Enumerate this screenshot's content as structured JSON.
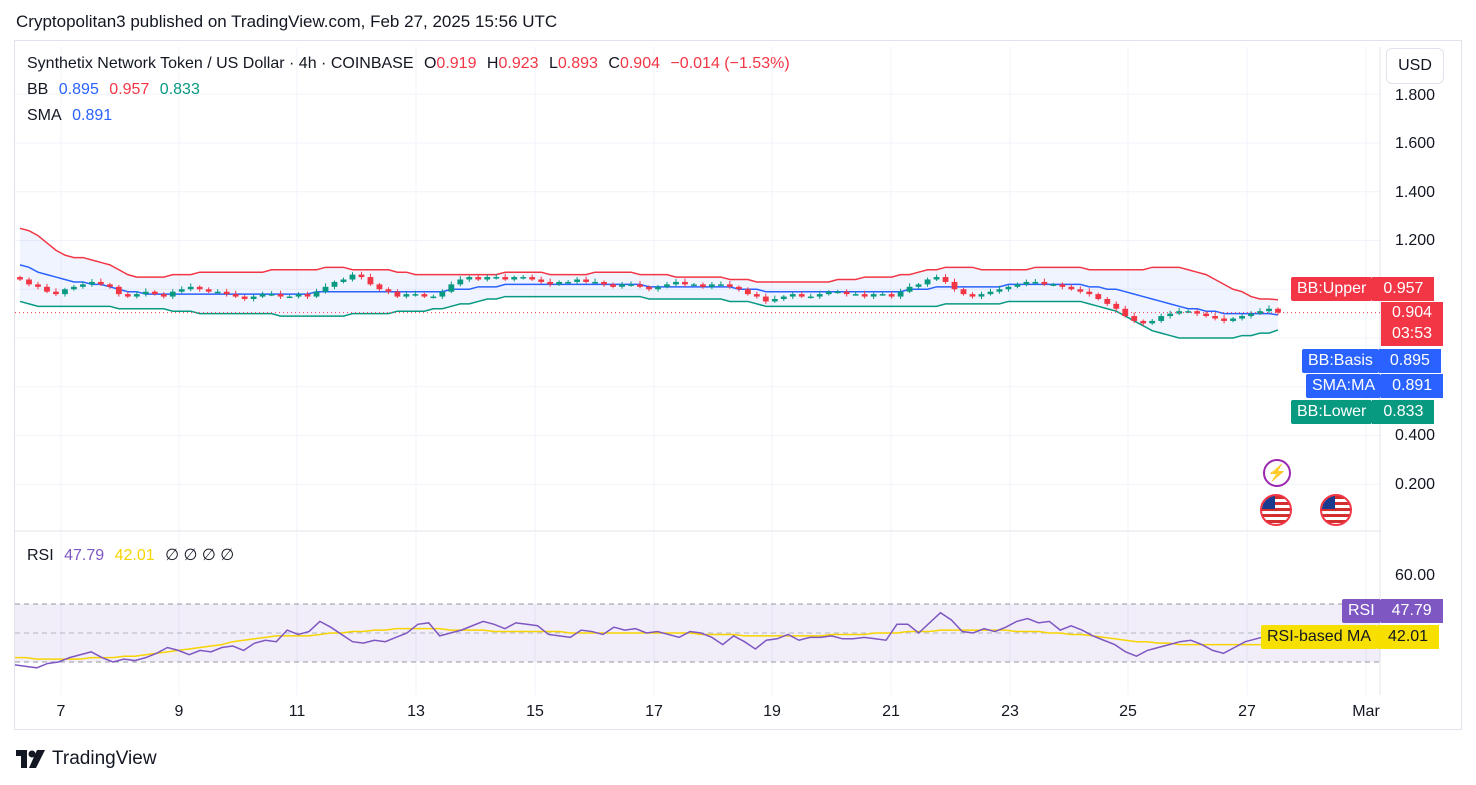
{
  "header": {
    "publisher": "Cryptopolitan3 published on TradingView.com, Feb 27, 2025 15:56 UTC"
  },
  "legend": {
    "symbol": "Synthetix Network Token / US Dollar · 4h · COINBASE",
    "o_label": "O",
    "o": "0.919",
    "h_label": "H",
    "h": "0.923",
    "l_label": "L",
    "l": "0.893",
    "c_label": "C",
    "c": "0.904",
    "change": "−0.014 (−1.53%)",
    "bb_label": "BB",
    "bb_basis": "0.895",
    "bb_upper": "0.957",
    "bb_lower": "0.833",
    "sma_label": "SMA",
    "sma": "0.891",
    "rsi_label": "RSI",
    "rsi": "47.79",
    "rsi_ma": "42.01",
    "rsi_extra": "∅ ∅ ∅ ∅"
  },
  "currency": "USD",
  "price_axis": [
    "1.800",
    "1.600",
    "1.400",
    "1.200",
    "0.400",
    "0.200"
  ],
  "rsi_axis": [
    "60.00"
  ],
  "tags": {
    "bb_upper": {
      "name": "BB:Upper",
      "value": "0.957"
    },
    "last": {
      "value": "0.904",
      "countdown": "03:53"
    },
    "bb_basis": {
      "name": "BB:Basis",
      "value": "0.895"
    },
    "sma": {
      "name": "SMA:MA",
      "value": "0.891"
    },
    "bb_lower": {
      "name": "BB:Lower",
      "value": "0.833"
    },
    "rsi": {
      "name": "RSI",
      "value": "47.79"
    },
    "rsi_ma": {
      "name": "RSI-based MA",
      "value": "42.01"
    }
  },
  "x_axis": [
    "7",
    "9",
    "11",
    "13",
    "15",
    "17",
    "19",
    "21",
    "23",
    "25",
    "27",
    "Mar"
  ],
  "footer": {
    "brand": "TradingView"
  },
  "colors": {
    "up": "#089981",
    "down": "#f23645",
    "basis": "#2962ff",
    "upper": "#f23645",
    "lower": "#089981",
    "rsi": "#7e57c2",
    "rsi_ma": "#f7d400"
  },
  "chart_data": {
    "type": "candlestick",
    "price_range": [
      0.0,
      1.9
    ],
    "rsi_range": [
      20,
      75
    ],
    "rsi_bands": [
      30,
      70
    ],
    "close": [
      1.04,
      1.02,
      1.01,
      0.99,
      0.98,
      1.0,
      1.01,
      1.02,
      1.03,
      1.02,
      1.01,
      0.98,
      0.97,
      0.98,
      0.99,
      0.98,
      0.97,
      0.99,
      1.0,
      1.01,
      1.0,
      0.99,
      0.99,
      0.98,
      0.97,
      0.96,
      0.97,
      0.98,
      0.98,
      0.97,
      0.97,
      0.98,
      0.97,
      0.99,
      1.01,
      1.03,
      1.04,
      1.06,
      1.05,
      1.02,
      1.0,
      0.99,
      0.97,
      0.98,
      0.98,
      0.97,
      0.97,
      0.99,
      1.02,
      1.04,
      1.05,
      1.04,
      1.05,
      1.05,
      1.04,
      1.05,
      1.05,
      1.04,
      1.03,
      1.02,
      1.03,
      1.03,
      1.04,
      1.03,
      1.03,
      1.02,
      1.01,
      1.02,
      1.02,
      1.01,
      1.0,
      1.01,
      1.02,
      1.03,
      1.02,
      1.02,
      1.01,
      1.02,
      1.02,
      1.01,
      1.0,
      0.98,
      0.97,
      0.95,
      0.96,
      0.97,
      0.98,
      0.97,
      0.97,
      0.98,
      0.99,
      0.99,
      0.98,
      0.98,
      0.97,
      0.98,
      0.98,
      0.97,
      0.99,
      1.01,
      1.02,
      1.04,
      1.05,
      1.03,
      1.0,
      0.98,
      0.97,
      0.98,
      0.99,
      1.0,
      1.01,
      1.02,
      1.03,
      1.03,
      1.02,
      1.02,
      1.01,
      1.0,
      0.99,
      0.98,
      0.96,
      0.94,
      0.92,
      0.89,
      0.87,
      0.86,
      0.87,
      0.89,
      0.9,
      0.91,
      0.91,
      0.9,
      0.89,
      0.88,
      0.87,
      0.88,
      0.89,
      0.9,
      0.91,
      0.92,
      0.904
    ],
    "bb_upper": [
      1.25,
      1.24,
      1.22,
      1.19,
      1.16,
      1.14,
      1.13,
      1.13,
      1.12,
      1.11,
      1.1,
      1.08,
      1.06,
      1.05,
      1.05,
      1.05,
      1.05,
      1.06,
      1.06,
      1.06,
      1.07,
      1.07,
      1.07,
      1.07,
      1.07,
      1.07,
      1.07,
      1.07,
      1.08,
      1.08,
      1.08,
      1.08,
      1.08,
      1.08,
      1.09,
      1.09,
      1.09,
      1.08,
      1.08,
      1.08,
      1.08,
      1.08,
      1.07,
      1.07,
      1.06,
      1.06,
      1.06,
      1.06,
      1.06,
      1.06,
      1.06,
      1.06,
      1.06,
      1.06,
      1.07,
      1.07,
      1.07,
      1.07,
      1.07,
      1.06,
      1.06,
      1.06,
      1.06,
      1.06,
      1.07,
      1.07,
      1.07,
      1.07,
      1.07,
      1.06,
      1.06,
      1.06,
      1.06,
      1.05,
      1.05,
      1.05,
      1.05,
      1.05,
      1.05,
      1.04,
      1.04,
      1.04,
      1.03,
      1.03,
      1.03,
      1.03,
      1.03,
      1.03,
      1.03,
      1.03,
      1.03,
      1.04,
      1.04,
      1.04,
      1.05,
      1.05,
      1.05,
      1.05,
      1.06,
      1.06,
      1.07,
      1.08,
      1.08,
      1.09,
      1.09,
      1.09,
      1.09,
      1.08,
      1.08,
      1.08,
      1.08,
      1.08,
      1.08,
      1.09,
      1.09,
      1.09,
      1.09,
      1.09,
      1.09,
      1.08,
      1.08,
      1.08,
      1.08,
      1.08,
      1.08,
      1.08,
      1.09,
      1.09,
      1.09,
      1.09,
      1.08,
      1.07,
      1.06,
      1.04,
      1.02,
      1.0,
      0.99,
      0.97,
      0.96,
      0.96,
      0.957
    ],
    "bb_basis": [
      1.1,
      1.09,
      1.07,
      1.06,
      1.05,
      1.04,
      1.03,
      1.03,
      1.02,
      1.02,
      1.01,
      1.0,
      0.99,
      0.99,
      0.98,
      0.98,
      0.98,
      0.98,
      0.98,
      0.98,
      0.98,
      0.98,
      0.98,
      0.98,
      0.98,
      0.98,
      0.98,
      0.98,
      0.98,
      0.98,
      0.98,
      0.98,
      0.98,
      0.99,
      0.99,
      0.99,
      0.99,
      0.99,
      0.99,
      0.99,
      0.99,
      0.99,
      0.99,
      0.99,
      0.99,
      0.99,
      0.99,
      0.99,
      1.0,
      1.0,
      1.0,
      1.01,
      1.01,
      1.01,
      1.02,
      1.02,
      1.02,
      1.02,
      1.02,
      1.02,
      1.02,
      1.02,
      1.02,
      1.02,
      1.02,
      1.02,
      1.02,
      1.02,
      1.02,
      1.02,
      1.01,
      1.01,
      1.01,
      1.01,
      1.01,
      1.01,
      1.01,
      1.01,
      1.01,
      1.01,
      1.0,
      1.0,
      1.0,
      0.99,
      0.99,
      0.99,
      0.99,
      0.99,
      0.99,
      0.99,
      0.99,
      0.99,
      0.99,
      0.99,
      0.99,
      0.99,
      0.99,
      0.99,
      0.99,
      1.0,
      1.0,
      1.0,
      1.01,
      1.01,
      1.01,
      1.01,
      1.01,
      1.01,
      1.01,
      1.01,
      1.02,
      1.02,
      1.02,
      1.02,
      1.02,
      1.02,
      1.02,
      1.02,
      1.02,
      1.01,
      1.01,
      1.0,
      1.0,
      0.99,
      0.98,
      0.97,
      0.96,
      0.95,
      0.94,
      0.93,
      0.92,
      0.92,
      0.91,
      0.91,
      0.9,
      0.9,
      0.9,
      0.9,
      0.9,
      0.9,
      0.895
    ],
    "bb_lower": [
      0.95,
      0.94,
      0.93,
      0.93,
      0.93,
      0.93,
      0.93,
      0.93,
      0.93,
      0.93,
      0.93,
      0.92,
      0.92,
      0.92,
      0.92,
      0.92,
      0.92,
      0.91,
      0.91,
      0.91,
      0.9,
      0.9,
      0.9,
      0.9,
      0.9,
      0.9,
      0.9,
      0.9,
      0.9,
      0.89,
      0.89,
      0.89,
      0.89,
      0.89,
      0.89,
      0.89,
      0.89,
      0.9,
      0.9,
      0.9,
      0.9,
      0.9,
      0.91,
      0.91,
      0.91,
      0.91,
      0.92,
      0.92,
      0.93,
      0.94,
      0.94,
      0.95,
      0.96,
      0.96,
      0.97,
      0.97,
      0.97,
      0.97,
      0.97,
      0.97,
      0.97,
      0.97,
      0.97,
      0.97,
      0.97,
      0.97,
      0.97,
      0.97,
      0.97,
      0.97,
      0.96,
      0.96,
      0.96,
      0.96,
      0.96,
      0.96,
      0.96,
      0.96,
      0.96,
      0.95,
      0.95,
      0.95,
      0.94,
      0.93,
      0.93,
      0.93,
      0.93,
      0.93,
      0.93,
      0.93,
      0.93,
      0.93,
      0.93,
      0.93,
      0.93,
      0.93,
      0.93,
      0.93,
      0.93,
      0.93,
      0.93,
      0.93,
      0.93,
      0.94,
      0.94,
      0.94,
      0.94,
      0.94,
      0.94,
      0.94,
      0.95,
      0.95,
      0.95,
      0.95,
      0.95,
      0.95,
      0.95,
      0.95,
      0.95,
      0.94,
      0.93,
      0.92,
      0.91,
      0.89,
      0.87,
      0.85,
      0.83,
      0.82,
      0.81,
      0.8,
      0.8,
      0.8,
      0.8,
      0.8,
      0.8,
      0.8,
      0.81,
      0.81,
      0.82,
      0.82,
      0.833
    ],
    "rsi": [
      28,
      27,
      26,
      29,
      30,
      33,
      35,
      37,
      33,
      30,
      32,
      31,
      33,
      36,
      40,
      38,
      35,
      38,
      37,
      40,
      41,
      38,
      43,
      45,
      44,
      52,
      49,
      51,
      58,
      54,
      49,
      44,
      43,
      45,
      44,
      47,
      50,
      56,
      57,
      48,
      50,
      52,
      55,
      58,
      56,
      53,
      57,
      56,
      55,
      49,
      48,
      47,
      52,
      51,
      49,
      54,
      52,
      53,
      50,
      51,
      49,
      47,
      51,
      50,
      47,
      42,
      48,
      44,
      39,
      45,
      46,
      49,
      45,
      47,
      47,
      48,
      46,
      46,
      47,
      46,
      45,
      56,
      56,
      50,
      57,
      64,
      59,
      51,
      50,
      53,
      51,
      54,
      58,
      60,
      57,
      58,
      52,
      55,
      52,
      48,
      45,
      42,
      37,
      34,
      38,
      40,
      42,
      44,
      45,
      42,
      38,
      36,
      40,
      44,
      46,
      48,
      47.79
    ],
    "rsi_ma": [
      33,
      33,
      32,
      32,
      32,
      32,
      32,
      33,
      33,
      33,
      34,
      34,
      35,
      36,
      37,
      38,
      39,
      40,
      41,
      42,
      44,
      45,
      46,
      47,
      48,
      48,
      48,
      48,
      49,
      50,
      50,
      51,
      51,
      52,
      52,
      53,
      53,
      53,
      53,
      53,
      52,
      52,
      52,
      52,
      51,
      51,
      51,
      51,
      51,
      51,
      51,
      50,
      50,
      50,
      50,
      50,
      50,
      50,
      50,
      50,
      50,
      50,
      50,
      49,
      49,
      49,
      49,
      48,
      48,
      48,
      48,
      48,
      48,
      48,
      48,
      49,
      49,
      49,
      49,
      50,
      50,
      50,
      51,
      51,
      51,
      52,
      52,
      52,
      52,
      52,
      52,
      52,
      51,
      51,
      51,
      50,
      50,
      49,
      49,
      48,
      47,
      46,
      45,
      44,
      44,
      43,
      43,
      42,
      42,
      42,
      42,
      42,
      42,
      42,
      42,
      42,
      42.01
    ]
  }
}
